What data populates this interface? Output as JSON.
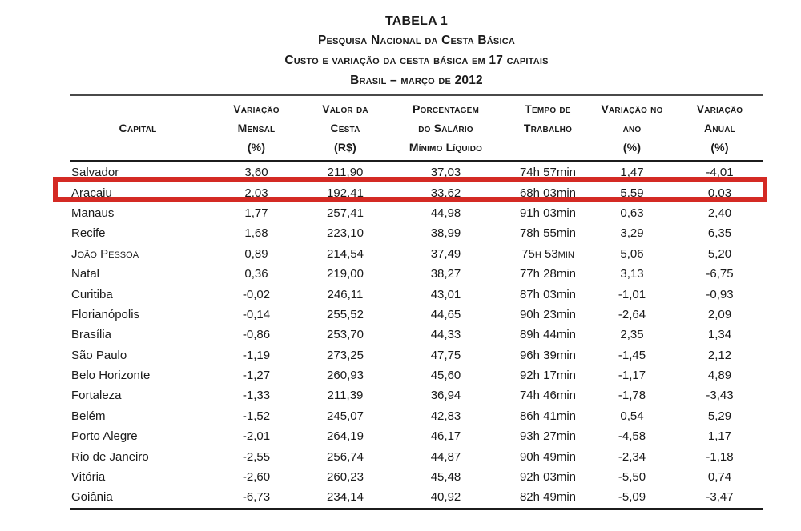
{
  "title": {
    "line1": "TABELA 1",
    "line2": "Pesquisa Nacional da Cesta Básica",
    "line3": "Custo e variação da cesta básica em 17 capitais",
    "line4": "Brasil – março de 2012"
  },
  "table": {
    "columns": [
      {
        "id": "capital",
        "lines": [
          "",
          "Capital",
          ""
        ]
      },
      {
        "id": "variacao-mensal",
        "lines": [
          "Variação",
          "Mensal",
          "(%)"
        ]
      },
      {
        "id": "valor-da-cesta",
        "lines": [
          "Valor da",
          "Cesta",
          "(R$)"
        ]
      },
      {
        "id": "porcentagem-salario",
        "lines": [
          "Porcentagem",
          "do Salário",
          "Mínimo Líquido"
        ]
      },
      {
        "id": "tempo-de-trabalho",
        "lines": [
          "Tempo de",
          "Trabalho",
          ""
        ]
      },
      {
        "id": "variacao-no-ano",
        "lines": [
          "Variação no",
          "ano",
          "(%)"
        ]
      },
      {
        "id": "variacao-anual",
        "lines": [
          "Variação",
          "Anual",
          "(%)"
        ]
      }
    ],
    "rows": [
      {
        "cells": [
          "Salvador",
          "3,60",
          "211,90",
          "37,03",
          "74h 57min",
          "1,47",
          "-4,01"
        ],
        "highlighted": false,
        "smallcaps": false
      },
      {
        "cells": [
          "Aracaju",
          "2,03",
          "192,41",
          "33,62",
          "68h 03min",
          "5,59",
          "0,03"
        ],
        "highlighted": true,
        "smallcaps": false
      },
      {
        "cells": [
          "Manaus",
          "1,77",
          "257,41",
          "44,98",
          "91h 03min",
          "0,63",
          "2,40"
        ],
        "highlighted": false,
        "smallcaps": false
      },
      {
        "cells": [
          "Recife",
          "1,68",
          "223,10",
          "38,99",
          "78h 55min",
          "3,29",
          "6,35"
        ],
        "highlighted": false,
        "smallcaps": false
      },
      {
        "cells": [
          "João Pessoa",
          "0,89",
          "214,54",
          "37,49",
          "75h 53min",
          "5,06",
          "5,20"
        ],
        "highlighted": false,
        "smallcaps": true
      },
      {
        "cells": [
          "Natal",
          "0,36",
          "219,00",
          "38,27",
          "77h 28min",
          "3,13",
          "-6,75"
        ],
        "highlighted": false,
        "smallcaps": false
      },
      {
        "cells": [
          "Curitiba",
          "-0,02",
          "246,11",
          "43,01",
          "87h 03min",
          "-1,01",
          "-0,93"
        ],
        "highlighted": false,
        "smallcaps": false
      },
      {
        "cells": [
          "Florianópolis",
          "-0,14",
          "255,52",
          "44,65",
          "90h 23min",
          "-2,64",
          "2,09"
        ],
        "highlighted": false,
        "smallcaps": false
      },
      {
        "cells": [
          "Brasília",
          "-0,86",
          "253,70",
          "44,33",
          "89h 44min",
          "2,35",
          "1,34"
        ],
        "highlighted": false,
        "smallcaps": false
      },
      {
        "cells": [
          "São Paulo",
          "-1,19",
          "273,25",
          "47,75",
          "96h 39min",
          "-1,45",
          "2,12"
        ],
        "highlighted": false,
        "smallcaps": false
      },
      {
        "cells": [
          "Belo Horizonte",
          "-1,27",
          "260,93",
          "45,60",
          "92h 17min",
          "-1,17",
          "4,89"
        ],
        "highlighted": false,
        "smallcaps": false
      },
      {
        "cells": [
          "Fortaleza",
          "-1,33",
          "211,39",
          "36,94",
          "74h 46min",
          "-1,78",
          "-3,43"
        ],
        "highlighted": false,
        "smallcaps": false
      },
      {
        "cells": [
          "Belém",
          "-1,52",
          "245,07",
          "42,83",
          "86h 41min",
          "0,54",
          "5,29"
        ],
        "highlighted": false,
        "smallcaps": false
      },
      {
        "cells": [
          "Porto Alegre",
          "-2,01",
          "264,19",
          "46,17",
          "93h 27min",
          "-4,58",
          "1,17"
        ],
        "highlighted": false,
        "smallcaps": false
      },
      {
        "cells": [
          "Rio de Janeiro",
          "-2,55",
          "256,74",
          "44,87",
          "90h 49min",
          "-2,34",
          "-1,18"
        ],
        "highlighted": false,
        "smallcaps": false
      },
      {
        "cells": [
          "Vitória",
          "-2,60",
          "260,23",
          "45,48",
          "92h 03min",
          "-5,50",
          "0,74"
        ],
        "highlighted": false,
        "smallcaps": false
      },
      {
        "cells": [
          "Goiânia",
          "-6,73",
          "234,14",
          "40,92",
          "82h 49min",
          "-5,09",
          "-3,47"
        ],
        "highlighted": false,
        "smallcaps": false
      }
    ],
    "highlight": {
      "row": "Aracaju",
      "color": "#d42a24"
    }
  }
}
